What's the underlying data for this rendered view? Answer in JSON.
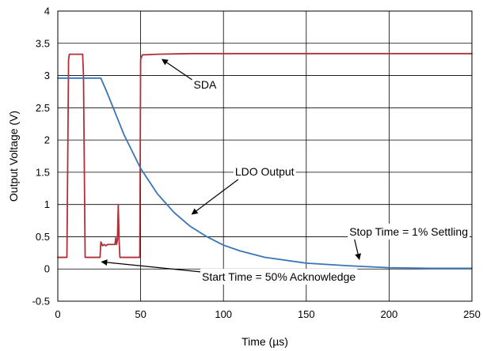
{
  "chart_data": {
    "type": "line",
    "title": "",
    "xlabel": "Time (µs)",
    "ylabel": "Output Voltage (V)",
    "xlim": [
      0,
      250
    ],
    "ylim": [
      -0.5,
      4
    ],
    "xticks": [
      0,
      50,
      100,
      150,
      200,
      250
    ],
    "xtick_labels": [
      "0",
      "50",
      "100",
      "150",
      "200",
      "250"
    ],
    "yticks": [
      -0.5,
      0,
      0.5,
      1,
      1.5,
      2,
      2.5,
      3,
      3.5,
      4
    ],
    "ytick_labels": [
      "-0.5",
      "0",
      "0.5",
      "1",
      "1.5",
      "2",
      "2.5",
      "3",
      "3.5",
      "4"
    ],
    "grid": true,
    "legend": "none",
    "series": [
      {
        "name": "SDA",
        "color": "#b0303a",
        "x": [
          0,
          5.5,
          6.5,
          7,
          15,
          15.5,
          16.5,
          25.5,
          26,
          27,
          28,
          29,
          30,
          34.5,
          35,
          35.5,
          36,
          36.5,
          37,
          37.5,
          38,
          49.5,
          50,
          51,
          60,
          80,
          100,
          150,
          200,
          250
        ],
        "y": [
          0.18,
          0.18,
          3.25,
          3.33,
          3.33,
          3.0,
          0.18,
          0.18,
          0.42,
          0.36,
          0.38,
          0.36,
          0.38,
          0.38,
          0.48,
          0.38,
          0.45,
          1.0,
          0.45,
          0.18,
          0.18,
          0.18,
          3.25,
          3.32,
          3.33,
          3.34,
          3.34,
          3.34,
          3.34,
          3.34
        ]
      },
      {
        "name": "LDO Output",
        "color": "#3a74b8",
        "x": [
          0,
          10,
          20,
          26,
          30,
          40,
          50,
          60,
          70,
          80,
          90,
          100,
          110,
          125,
          150,
          175,
          200,
          225,
          250
        ],
        "y": [
          2.96,
          2.96,
          2.96,
          2.96,
          2.72,
          2.08,
          1.56,
          1.17,
          0.88,
          0.66,
          0.5,
          0.37,
          0.28,
          0.18,
          0.09,
          0.05,
          0.02,
          0.01,
          0.01
        ]
      }
    ],
    "annotations": [
      {
        "text": "SDA",
        "x": 82,
        "y": 2.8,
        "arrow_to_x": 63,
        "arrow_to_y": 3.25
      },
      {
        "text": "LDO Output",
        "x": 107,
        "y": 1.45,
        "arrow_to_x": 81,
        "arrow_to_y": 0.85
      },
      {
        "text": "Stop Time = 1% Settling",
        "x": 176,
        "y": 0.52,
        "arrow_to_x": 182,
        "arrow_to_y": 0.15
      },
      {
        "text": "Start Time = 50% Acknowledge",
        "x": 87,
        "y": -0.18,
        "arrow_to_x": 26.5,
        "arrow_to_y": 0.11
      }
    ]
  }
}
